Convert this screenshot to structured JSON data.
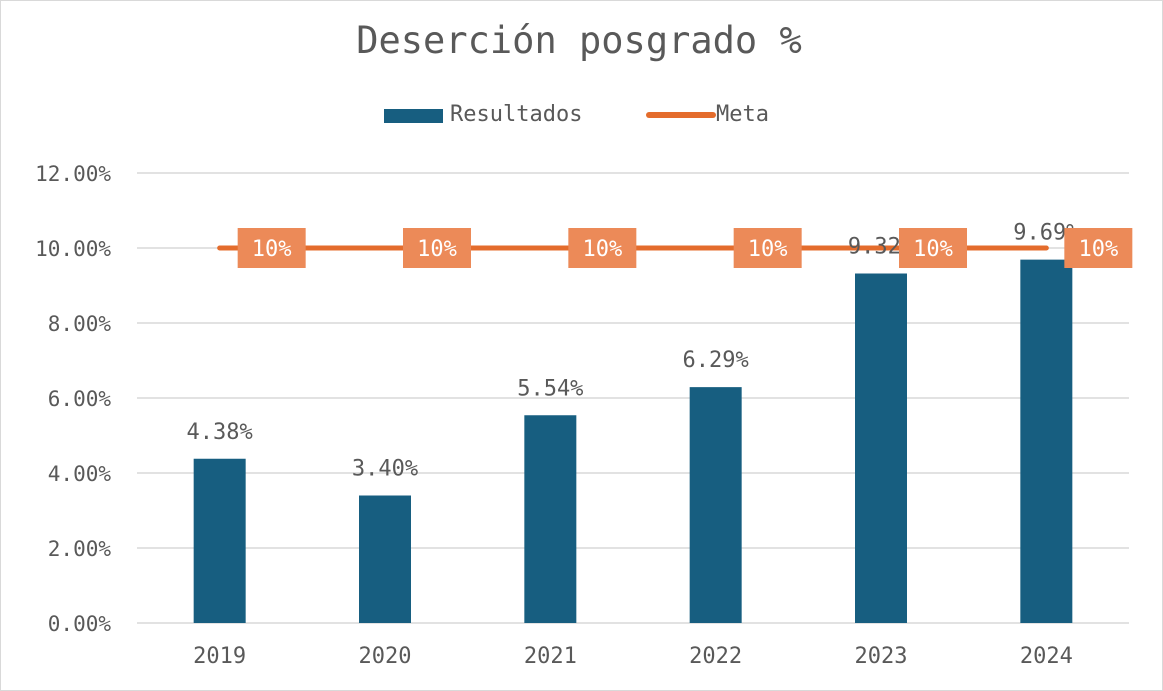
{
  "chart_data": {
    "type": "bar",
    "title": "Deserción posgrado %",
    "categories": [
      "2019",
      "2020",
      "2021",
      "2022",
      "2023",
      "2024"
    ],
    "series": [
      {
        "name": "Resultados",
        "kind": "bar",
        "color": "#175e80",
        "values": [
          4.38,
          3.4,
          5.54,
          6.29,
          9.32,
          9.69
        ],
        "labels": [
          "4.38%",
          "3.40%",
          "5.54%",
          "6.29%",
          "9.32%",
          "9.69%"
        ]
      },
      {
        "name": "Meta",
        "kind": "line",
        "color": "#e46c2c",
        "values": [
          10,
          10,
          10,
          10,
          10,
          10
        ],
        "labels": [
          "10%",
          "10%",
          "10%",
          "10%",
          "10%",
          "10%"
        ]
      }
    ],
    "ylim": [
      0,
      12
    ],
    "yticks": [
      0,
      2,
      4,
      6,
      8,
      10,
      12
    ],
    "ytick_labels": [
      "0.00%",
      "2.00%",
      "4.00%",
      "6.00%",
      "8.00%",
      "10.00%",
      "12.00%"
    ],
    "grid": true,
    "legend": "top-center"
  },
  "colors": {
    "grid": "#d9d9d9",
    "text": "#595959",
    "label_box": "#ec8a58"
  }
}
